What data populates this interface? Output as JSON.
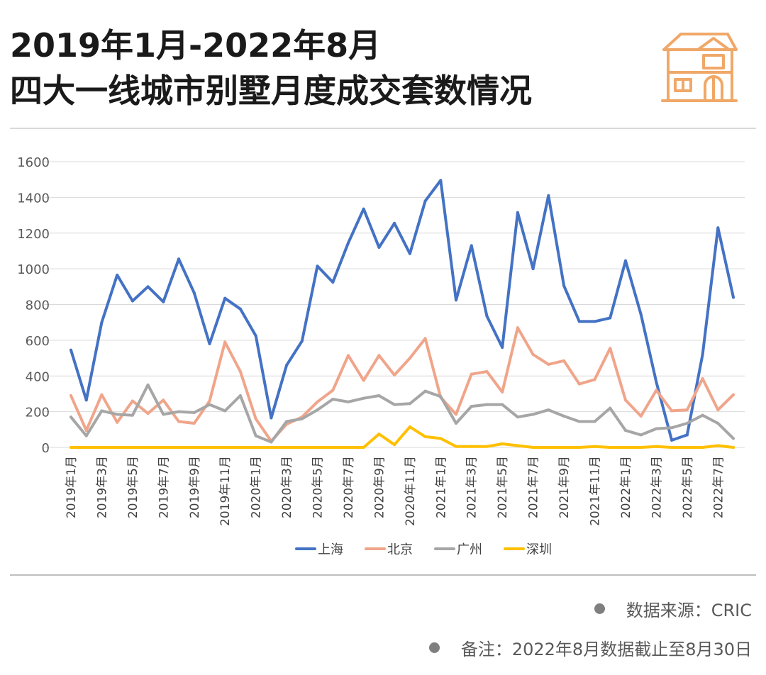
{
  "header": {
    "title_line1": "2019年1月-2022年8月",
    "title_line2": "四大一线城市别墅月度成交套数情况"
  },
  "icons": {
    "house": "house-icon"
  },
  "notes": {
    "source": "数据来源：CRIC",
    "remark": "备注：2022年8月数据截止至8月30日"
  },
  "colors": {
    "title": "#1a1a1a",
    "accent_orange": "#f0a868",
    "grid": "#d9d9d9",
    "axis_text": "#595959"
  },
  "chart_data": {
    "type": "line",
    "title": "2019年1月-2022年8月四大一线城市别墅月度成交套数情况",
    "xlabel": "",
    "ylabel": "",
    "ylim": [
      0,
      1600
    ],
    "yticks": [
      0,
      200,
      400,
      600,
      800,
      1000,
      1200,
      1400,
      1600
    ],
    "grid": true,
    "legend_position": "bottom",
    "x": [
      "2019年1月",
      "2019年2月",
      "2019年3月",
      "2019年4月",
      "2019年5月",
      "2019年6月",
      "2019年7月",
      "2019年8月",
      "2019年9月",
      "2019年10月",
      "2019年11月",
      "2019年12月",
      "2020年1月",
      "2020年2月",
      "2020年3月",
      "2020年4月",
      "2020年5月",
      "2020年6月",
      "2020年7月",
      "2020年8月",
      "2020年9月",
      "2020年10月",
      "2020年11月",
      "2020年12月",
      "2021年1月",
      "2021年2月",
      "2021年3月",
      "2021年4月",
      "2021年5月",
      "2021年6月",
      "2021年7月",
      "2021年8月",
      "2021年9月",
      "2021年10月",
      "2021年11月",
      "2021年12月",
      "2022年1月",
      "2022年2月",
      "2022年3月",
      "2022年4月",
      "2022年5月",
      "2022年6月",
      "2022年7月",
      "2022年8月"
    ],
    "xtick_labels": [
      "2019年1月",
      "2019年3月",
      "2019年5月",
      "2019年7月",
      "2019年9月",
      "2019年11月",
      "2020年1月",
      "2020年3月",
      "2020年5月",
      "2020年7月",
      "2020年9月",
      "2020年11月",
      "2021年1月",
      "2021年3月",
      "2021年5月",
      "2021年7月",
      "2021年9月",
      "2021年11月",
      "2022年1月",
      "2022年3月",
      "2022年5月",
      "2022年7月"
    ],
    "series": [
      {
        "name": "上海",
        "color": "#4472c4",
        "values": [
          545,
          265,
          700,
          965,
          820,
          900,
          815,
          1055,
          865,
          580,
          835,
          775,
          625,
          165,
          460,
          595,
          1015,
          925,
          1145,
          1335,
          1120,
          1255,
          1085,
          1380,
          1495,
          825,
          1130,
          735,
          560,
          1315,
          1000,
          1410,
          905,
          705,
          705,
          725,
          1045,
          745,
          365,
          40,
          70,
          520,
          1230,
          840
        ]
      },
      {
        "name": "北京",
        "color": "#f0a58a",
        "values": [
          290,
          95,
          295,
          140,
          260,
          190,
          265,
          145,
          135,
          260,
          590,
          425,
          160,
          35,
          130,
          170,
          255,
          320,
          515,
          375,
          515,
          405,
          500,
          610,
          280,
          185,
          410,
          425,
          310,
          670,
          520,
          465,
          485,
          355,
          380,
          555,
          265,
          175,
          320,
          205,
          210,
          385,
          210,
          295
        ]
      },
      {
        "name": "广州",
        "color": "#a6a6a6",
        "values": [
          170,
          65,
          205,
          185,
          180,
          350,
          185,
          200,
          195,
          240,
          205,
          290,
          65,
          30,
          145,
          160,
          210,
          270,
          255,
          275,
          290,
          240,
          245,
          315,
          285,
          135,
          230,
          240,
          240,
          170,
          185,
          210,
          175,
          145,
          145,
          220,
          95,
          70,
          105,
          110,
          135,
          180,
          135,
          50
        ]
      },
      {
        "name": "深圳",
        "color": "#ffc000",
        "values": [
          0,
          0,
          0,
          0,
          0,
          0,
          0,
          0,
          0,
          0,
          0,
          0,
          0,
          0,
          0,
          0,
          0,
          0,
          0,
          0,
          75,
          15,
          115,
          60,
          50,
          5,
          5,
          5,
          20,
          10,
          0,
          0,
          0,
          0,
          5,
          0,
          0,
          0,
          5,
          0,
          0,
          0,
          10,
          0
        ]
      }
    ]
  }
}
